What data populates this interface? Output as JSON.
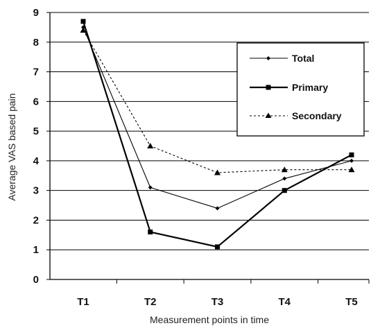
{
  "chart_data": {
    "type": "line",
    "categories": [
      "T1",
      "T2",
      "T3",
      "T4",
      "T5"
    ],
    "xlabel": "Measurement points in time",
    "ylabel": "Average VAS based pain",
    "ylim": [
      0,
      9
    ],
    "yticks": [
      0,
      1,
      2,
      3,
      4,
      5,
      6,
      7,
      8,
      9
    ],
    "grid": true,
    "legend_position": "top-right",
    "series": [
      {
        "name": "Total",
        "values": [
          8.5,
          3.1,
          2.4,
          3.4,
          4.0
        ],
        "color": "#000000",
        "marker": "diamond",
        "line": "solid-thin"
      },
      {
        "name": "Primary",
        "values": [
          8.7,
          1.6,
          1.1,
          3.0,
          4.2
        ],
        "color": "#000000",
        "marker": "square",
        "line": "solid-thick"
      },
      {
        "name": "Secondary",
        "values": [
          8.4,
          4.5,
          3.6,
          3.7,
          3.7
        ],
        "color": "#000000",
        "marker": "triangle",
        "line": "dotted"
      }
    ]
  }
}
